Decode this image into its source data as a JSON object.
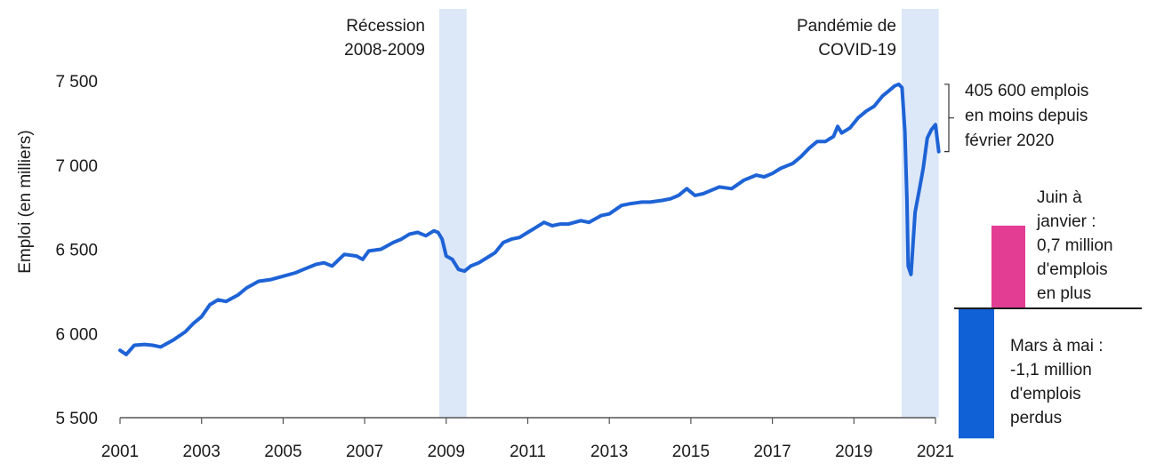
{
  "colors": {
    "line": "#1e63d6",
    "shade": "#dce8f8",
    "bar_down": "#1060d6",
    "bar_up": "#e23d92",
    "axis": "#555555",
    "text": "#1a1a1a"
  },
  "chart_data": {
    "type": "line",
    "title": "",
    "xlabel": "",
    "ylabel": "Emploi (en milliers)",
    "xlim": [
      2001,
      2021
    ],
    "ylim": [
      5500,
      7500
    ],
    "y_ticks": [
      5500,
      6000,
      6500,
      7000,
      7500
    ],
    "y_tick_labels": [
      "5 500",
      "6 000",
      "6 500",
      "7 000",
      "7 500"
    ],
    "x_ticks": [
      2001,
      2003,
      2005,
      2007,
      2009,
      2011,
      2013,
      2015,
      2017,
      2019,
      2021
    ],
    "x_tick_labels": [
      "2001",
      "2003",
      "2005",
      "2007",
      "2009",
      "2011",
      "2013",
      "2015",
      "2017",
      "2019",
      "2021"
    ],
    "grid": false,
    "series": [
      {
        "name": "",
        "points": [
          [
            2001.0,
            5900
          ],
          [
            2001.15,
            5875
          ],
          [
            2001.35,
            5930
          ],
          [
            2001.6,
            5935
          ],
          [
            2001.8,
            5930
          ],
          [
            2002.0,
            5920
          ],
          [
            2002.3,
            5960
          ],
          [
            2002.6,
            6010
          ],
          [
            2002.8,
            6060
          ],
          [
            2003.0,
            6100
          ],
          [
            2003.2,
            6170
          ],
          [
            2003.4,
            6200
          ],
          [
            2003.6,
            6190
          ],
          [
            2003.9,
            6230
          ],
          [
            2004.1,
            6270
          ],
          [
            2004.4,
            6310
          ],
          [
            2004.7,
            6320
          ],
          [
            2005.0,
            6340
          ],
          [
            2005.3,
            6360
          ],
          [
            2005.5,
            6380
          ],
          [
            2005.8,
            6410
          ],
          [
            2006.0,
            6420
          ],
          [
            2006.2,
            6400
          ],
          [
            2006.5,
            6470
          ],
          [
            2006.8,
            6460
          ],
          [
            2006.95,
            6440
          ],
          [
            2007.1,
            6490
          ],
          [
            2007.4,
            6500
          ],
          [
            2007.7,
            6540
          ],
          [
            2007.9,
            6560
          ],
          [
            2008.1,
            6590
          ],
          [
            2008.3,
            6600
          ],
          [
            2008.5,
            6580
          ],
          [
            2008.7,
            6610
          ],
          [
            2008.8,
            6600
          ],
          [
            2008.9,
            6560
          ],
          [
            2009.0,
            6460
          ],
          [
            2009.15,
            6440
          ],
          [
            2009.3,
            6380
          ],
          [
            2009.45,
            6370
          ],
          [
            2009.6,
            6400
          ],
          [
            2009.8,
            6420
          ],
          [
            2010.0,
            6450
          ],
          [
            2010.2,
            6480
          ],
          [
            2010.4,
            6540
          ],
          [
            2010.6,
            6560
          ],
          [
            2010.8,
            6570
          ],
          [
            2011.0,
            6600
          ],
          [
            2011.2,
            6630
          ],
          [
            2011.4,
            6660
          ],
          [
            2011.6,
            6640
          ],
          [
            2011.8,
            6650
          ],
          [
            2012.0,
            6650
          ],
          [
            2012.3,
            6670
          ],
          [
            2012.5,
            6660
          ],
          [
            2012.8,
            6700
          ],
          [
            2013.0,
            6710
          ],
          [
            2013.3,
            6760
          ],
          [
            2013.5,
            6770
          ],
          [
            2013.8,
            6780
          ],
          [
            2014.0,
            6780
          ],
          [
            2014.3,
            6790
          ],
          [
            2014.5,
            6800
          ],
          [
            2014.7,
            6820
          ],
          [
            2014.9,
            6860
          ],
          [
            2015.1,
            6820
          ],
          [
            2015.3,
            6830
          ],
          [
            2015.5,
            6850
          ],
          [
            2015.7,
            6870
          ],
          [
            2016.0,
            6860
          ],
          [
            2016.3,
            6910
          ],
          [
            2016.6,
            6940
          ],
          [
            2016.8,
            6930
          ],
          [
            2017.0,
            6950
          ],
          [
            2017.2,
            6980
          ],
          [
            2017.5,
            7010
          ],
          [
            2017.7,
            7050
          ],
          [
            2017.9,
            7100
          ],
          [
            2018.1,
            7140
          ],
          [
            2018.3,
            7140
          ],
          [
            2018.5,
            7170
          ],
          [
            2018.6,
            7230
          ],
          [
            2018.7,
            7190
          ],
          [
            2018.9,
            7220
          ],
          [
            2019.1,
            7280
          ],
          [
            2019.3,
            7320
          ],
          [
            2019.5,
            7350
          ],
          [
            2019.7,
            7410
          ],
          [
            2019.85,
            7440
          ],
          [
            2020.0,
            7470
          ],
          [
            2020.1,
            7480
          ],
          [
            2020.18,
            7460
          ],
          [
            2020.25,
            7200
          ],
          [
            2020.3,
            6800
          ],
          [
            2020.33,
            6400
          ],
          [
            2020.4,
            6350
          ],
          [
            2020.5,
            6720
          ],
          [
            2020.6,
            6850
          ],
          [
            2020.7,
            6980
          ],
          [
            2020.8,
            7160
          ],
          [
            2020.9,
            7210
          ],
          [
            2021.0,
            7240
          ],
          [
            2021.08,
            7080
          ]
        ]
      }
    ],
    "shaded_periods": [
      {
        "label": "Récession 2008-2009",
        "label_lines": [
          "Récession",
          "2008-2009"
        ],
        "from": 2008.83,
        "to": 2009.5
      },
      {
        "label": "Pandémie de COVID-19",
        "label_lines": [
          "Pandémie de",
          "COVID-19"
        ],
        "from": 2020.17,
        "to": 2021.08
      }
    ],
    "annotations": [
      {
        "label": "405 600 emplois en moins depuis février 2020",
        "lines": [
          "405 600 emplois",
          "en moins depuis",
          "février 2020"
        ],
        "value_thousands": -405.6
      }
    ],
    "change_bars": [
      {
        "label": "Juin à janvier : 0,7 million d'emplois en plus",
        "lines": [
          "Juin à",
          "janvier :",
          "0,7 million",
          "d'emplois",
          "en plus"
        ],
        "value_millions": 0.7
      },
      {
        "label": "Mars à mai : -1,1 million d'emplois perdus",
        "lines": [
          "Mars à mai :",
          "-1,1 million",
          "d'emplois",
          "perdus"
        ],
        "value_millions": -1.1
      }
    ]
  }
}
